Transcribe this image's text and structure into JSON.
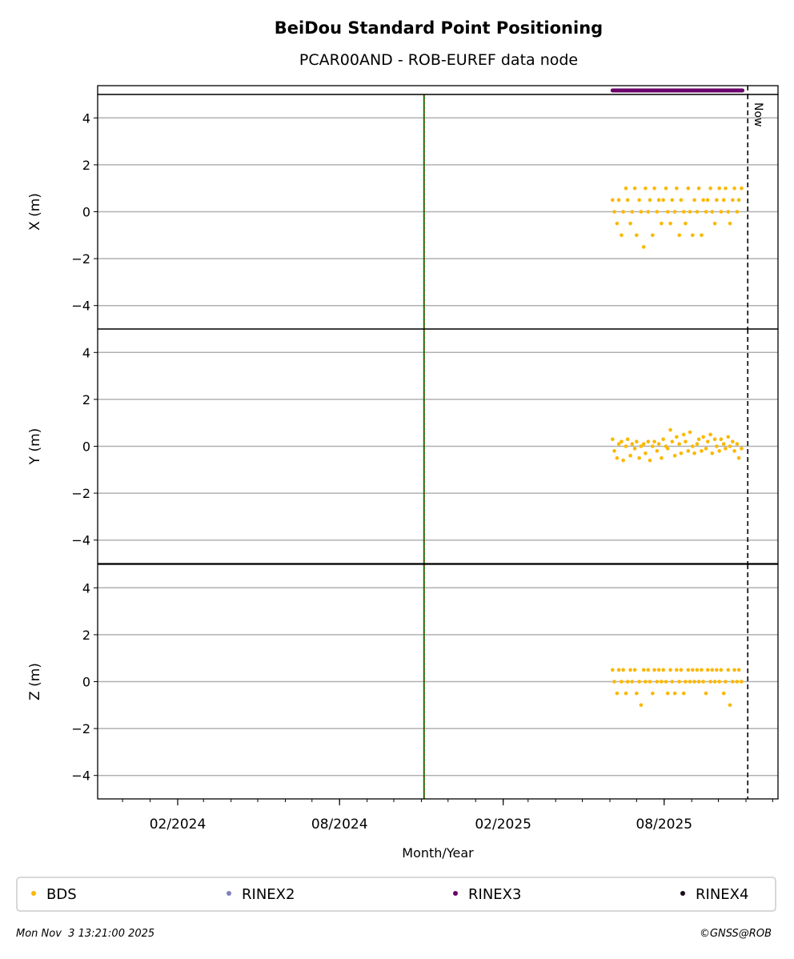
{
  "chart_data": {
    "type": "scatter",
    "title": "BeiDou Standard Point Positioning",
    "subtitle": "PCAR00AND - ROB-EUREF data node",
    "xlabel": "Month/Year",
    "xlim": [
      "2023-11-03",
      "2025-12-07"
    ],
    "x_ticks": [
      "02/2024",
      "08/2024",
      "02/2025",
      "08/2025"
    ],
    "x_tick_dates": [
      "2024-02-01",
      "2024-08-01",
      "2025-02-01",
      "2025-08-01"
    ],
    "grid": true,
    "panels": [
      {
        "ylabel": "X (m)",
        "key": "x",
        "ylim": [
          -5,
          5
        ],
        "y_ticks": [
          "4",
          "2",
          "0",
          "−2",
          "−4"
        ]
      },
      {
        "ylabel": "Y (m)",
        "key": "y",
        "ylim": [
          -5,
          5
        ],
        "y_ticks": [
          "4",
          "2",
          "0",
          "−2",
          "−4"
        ]
      },
      {
        "ylabel": "Z (m)",
        "key": "z",
        "ylim": [
          -5,
          5
        ],
        "y_ticks": [
          "4",
          "2",
          "0",
          "−2",
          "−4"
        ]
      }
    ],
    "vlines": [
      {
        "date": "2024-11-04",
        "style": "green-red-dashed"
      },
      {
        "date": "2025-11-03",
        "label": "Now",
        "style": "black-dashed"
      }
    ],
    "rinex3_span": [
      "2025-06-04",
      "2025-10-28"
    ],
    "series": [
      {
        "name": "BDS",
        "dates": [
          "2025-06-04",
          "2025-06-06",
          "2025-06-09",
          "2025-06-11",
          "2025-06-14",
          "2025-06-16",
          "2025-06-19",
          "2025-06-21",
          "2025-06-24",
          "2025-06-26",
          "2025-06-29",
          "2025-07-01",
          "2025-07-04",
          "2025-07-06",
          "2025-07-09",
          "2025-07-11",
          "2025-07-14",
          "2025-07-16",
          "2025-07-19",
          "2025-07-21",
          "2025-07-24",
          "2025-07-26",
          "2025-07-29",
          "2025-07-31",
          "2025-08-03",
          "2025-08-05",
          "2025-08-08",
          "2025-08-10",
          "2025-08-13",
          "2025-08-15",
          "2025-08-18",
          "2025-08-20",
          "2025-08-23",
          "2025-08-25",
          "2025-08-28",
          "2025-08-30",
          "2025-09-02",
          "2025-09-04",
          "2025-09-07",
          "2025-09-09",
          "2025-09-12",
          "2025-09-14",
          "2025-09-17",
          "2025-09-19",
          "2025-09-22",
          "2025-09-24",
          "2025-09-27",
          "2025-09-29",
          "2025-10-02",
          "2025-10-04",
          "2025-10-07",
          "2025-10-09",
          "2025-10-12",
          "2025-10-14",
          "2025-10-17",
          "2025-10-19",
          "2025-10-22",
          "2025-10-24",
          "2025-10-27"
        ],
        "x": [
          0.5,
          0,
          -0.5,
          0.5,
          -1,
          0,
          1,
          0.5,
          -0.5,
          0,
          1,
          -1,
          0.5,
          0,
          -1.5,
          1,
          0,
          0.5,
          -1,
          1,
          0,
          0.5,
          -0.5,
          0.5,
          1,
          0,
          -0.5,
          0.5,
          0,
          1,
          -1,
          0.5,
          0,
          -0.5,
          1,
          0,
          -1,
          0.5,
          0,
          1,
          -1,
          0.5,
          0,
          0.5,
          1,
          0,
          -0.5,
          0.5,
          1,
          0,
          0.5,
          1,
          0,
          -0.5,
          0.5,
          1,
          0,
          0.5,
          1
        ],
        "y": [
          0.3,
          -0.2,
          -0.5,
          0.1,
          0.2,
          -0.6,
          0,
          0.3,
          -0.4,
          0.1,
          -0.1,
          0.2,
          -0.5,
          0,
          0.1,
          -0.3,
          0.2,
          -0.6,
          0,
          0.2,
          -0.2,
          0.1,
          -0.5,
          0.3,
          0,
          -0.1,
          0.7,
          0.2,
          -0.4,
          0.4,
          0.1,
          -0.3,
          0.5,
          0.2,
          -0.2,
          0.6,
          0,
          -0.3,
          0.1,
          0.3,
          -0.2,
          0.4,
          -0.1,
          0.2,
          0.5,
          -0.3,
          0.3,
          0,
          -0.2,
          0.3,
          0.1,
          -0.1,
          0.4,
          0,
          0.2,
          -0.2,
          0.1,
          -0.5,
          -0.1
        ],
        "z": [
          0.5,
          0,
          -0.5,
          0.5,
          0,
          0.5,
          -0.5,
          0,
          0.5,
          0,
          0.5,
          -0.5,
          0,
          -1,
          0.5,
          0,
          0.5,
          0,
          -0.5,
          0.5,
          0,
          0.5,
          0,
          0.5,
          0,
          -0.5,
          0.5,
          0,
          -0.5,
          0.5,
          0,
          0.5,
          -0.5,
          0,
          0.5,
          0,
          0.5,
          0,
          0.5,
          0,
          0.5,
          0,
          -0.5,
          0.5,
          0,
          0.5,
          0,
          0.5,
          0,
          0.5,
          -0.5,
          0,
          0.5,
          -1,
          0,
          0.5,
          0,
          0.5,
          0
        ]
      }
    ],
    "legend": {
      "placement": "bottom",
      "entries": [
        {
          "label": "BDS",
          "color": "#fbb800"
        },
        {
          "label": "RINEX2",
          "color": "#8080c0"
        },
        {
          "label": "RINEX3",
          "color": "#6a006a"
        },
        {
          "label": "RINEX4",
          "color": "#1a0a1a"
        }
      ]
    }
  },
  "footer": {
    "timestamp": "Mon Nov  3 13:21:00 2025",
    "copyright": "©GNSS@ROB"
  }
}
